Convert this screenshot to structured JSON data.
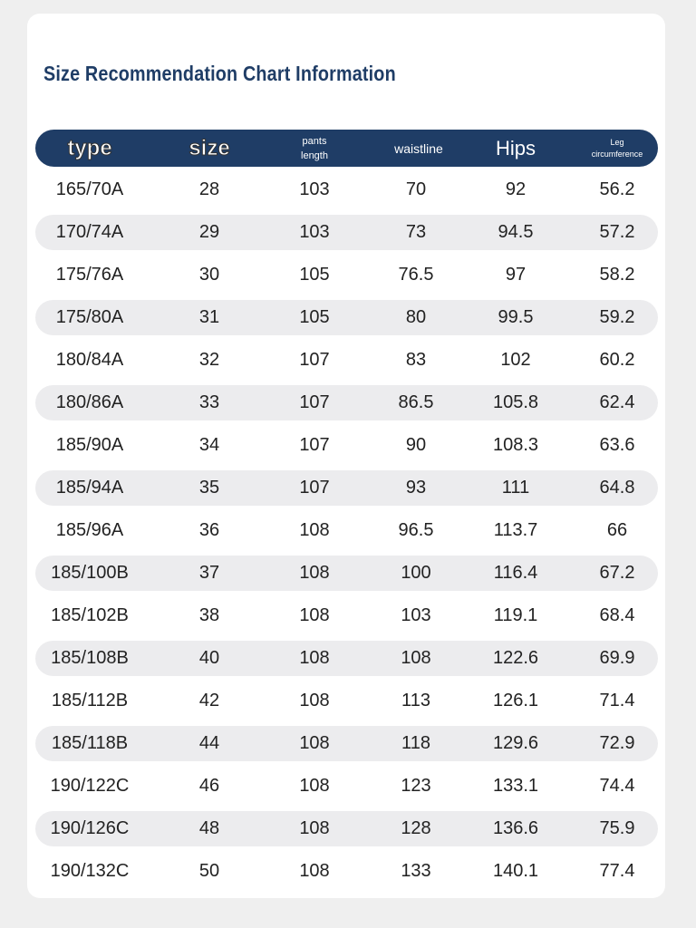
{
  "title": "Size Recommendation Chart Information",
  "colors": {
    "header": "#1f3d66",
    "stripe": "#ececee"
  },
  "headers": {
    "type": "type",
    "size": "size",
    "pants_length": [
      "pants",
      "length"
    ],
    "waistline": "waistline",
    "hips": "Hips",
    "leg": [
      "Leg",
      "circumference"
    ]
  },
  "rows": [
    [
      "165/70A",
      "28",
      "103",
      "70",
      "92",
      "56.2"
    ],
    [
      "170/74A",
      "29",
      "103",
      "73",
      "94.5",
      "57.2"
    ],
    [
      "175/76A",
      "30",
      "105",
      "76.5",
      "97",
      "58.2"
    ],
    [
      "175/80A",
      "31",
      "105",
      "80",
      "99.5",
      "59.2"
    ],
    [
      "180/84A",
      "32",
      "107",
      "83",
      "102",
      "60.2"
    ],
    [
      "180/86A",
      "33",
      "107",
      "86.5",
      "105.8",
      "62.4"
    ],
    [
      "185/90A",
      "34",
      "107",
      "90",
      "108.3",
      "63.6"
    ],
    [
      "185/94A",
      "35",
      "107",
      "93",
      "111",
      "64.8"
    ],
    [
      "185/96A",
      "36",
      "108",
      "96.5",
      "113.7",
      "66"
    ],
    [
      "185/100B",
      "37",
      "108",
      "100",
      "116.4",
      "67.2"
    ],
    [
      "185/102B",
      "38",
      "108",
      "103",
      "119.1",
      "68.4"
    ],
    [
      "185/108B",
      "40",
      "108",
      "108",
      "122.6",
      "69.9"
    ],
    [
      "185/112B",
      "42",
      "108",
      "113",
      "126.1",
      "71.4"
    ],
    [
      "185/118B",
      "44",
      "108",
      "118",
      "129.6",
      "72.9"
    ],
    [
      "190/122C",
      "46",
      "108",
      "123",
      "133.1",
      "74.4"
    ],
    [
      "190/126C",
      "48",
      "108",
      "128",
      "136.6",
      "75.9"
    ],
    [
      "190/132C",
      "50",
      "108",
      "133",
      "140.1",
      "77.4"
    ]
  ]
}
